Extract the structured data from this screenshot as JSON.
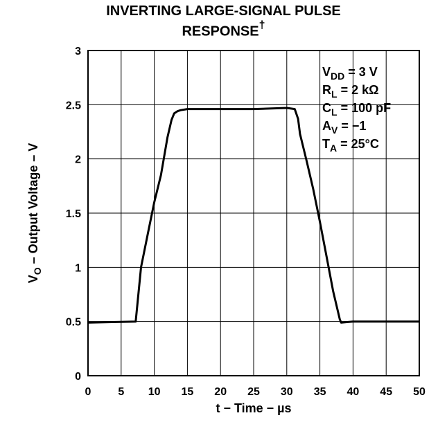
{
  "chart_data": {
    "type": "line",
    "title_line1": "INVERTING LARGE-SIGNAL PULSE",
    "title_line2": "RESPONSE",
    "title_mark": "†",
    "xlabel": "t − Time − µs",
    "ylabel_main": "V",
    "ylabel_sub": "O",
    "ylabel_rest": " – Output Voltage – V",
    "xlim": [
      0,
      50
    ],
    "ylim": [
      0,
      3
    ],
    "x_ticks": [
      "0",
      "5",
      "10",
      "15",
      "20",
      "25",
      "30",
      "35",
      "40",
      "45",
      "50"
    ],
    "y_ticks": [
      "0",
      "0.5",
      "1",
      "1.5",
      "2",
      "2.5",
      "3"
    ],
    "grid": true,
    "annotations": [
      {
        "main": "V",
        "sub": "DD",
        "rest": " = 3 V"
      },
      {
        "main": "R",
        "sub": "L",
        "rest": " = 2 kΩ"
      },
      {
        "main": "C",
        "sub": "L",
        "rest": " = 100  pF"
      },
      {
        "main": "A",
        "sub": "V",
        "rest": " = −1"
      },
      {
        "main": "T",
        "sub": "A",
        "rest": " = 25°C"
      }
    ],
    "series": [
      {
        "name": "V_O",
        "x": [
          0,
          7.2,
          8,
          9,
          10,
          11,
          12,
          12.6,
          13,
          13.5,
          14,
          15,
          17,
          20,
          25,
          30,
          31.2,
          31.7,
          32,
          33,
          34,
          35,
          36,
          37,
          38,
          38.2,
          40,
          45,
          50
        ],
        "y": [
          0.49,
          0.5,
          1.0,
          1.3,
          1.6,
          1.85,
          2.2,
          2.36,
          2.42,
          2.44,
          2.45,
          2.46,
          2.46,
          2.46,
          2.46,
          2.47,
          2.46,
          2.37,
          2.23,
          1.98,
          1.72,
          1.42,
          1.1,
          0.78,
          0.52,
          0.49,
          0.5,
          0.5,
          0.5
        ]
      }
    ]
  }
}
